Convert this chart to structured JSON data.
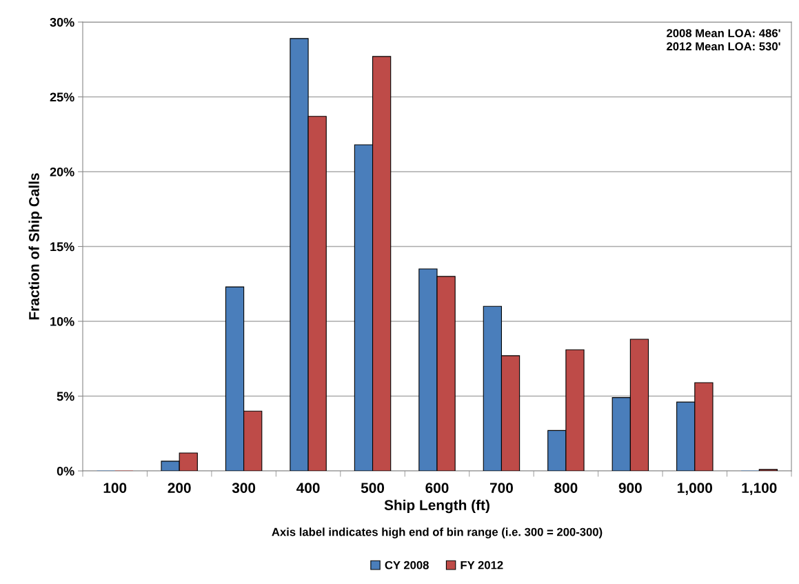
{
  "chart_data": {
    "type": "bar",
    "xlabel": "Ship Length (ft)",
    "ylabel": "Fraction of Ship Calls",
    "categories": [
      "100",
      "200",
      "300",
      "400",
      "500",
      "600",
      "700",
      "800",
      "900",
      "1,000",
      "1,100"
    ],
    "series": [
      {
        "name": "CY 2008",
        "color": "#4a7ebb",
        "values": [
          0,
          0.65,
          12.3,
          28.9,
          21.8,
          13.5,
          11.0,
          2.7,
          4.9,
          4.6,
          0
        ]
      },
      {
        "name": "FY 2012",
        "color": "#be4b48",
        "values": [
          0,
          1.2,
          4.0,
          23.7,
          27.7,
          13.0,
          7.7,
          8.1,
          8.8,
          5.9,
          0.1
        ]
      }
    ],
    "ylim": [
      0,
      30
    ],
    "yticks": [
      {
        "value": 0,
        "label": "0%"
      },
      {
        "value": 5,
        "label": "5%"
      },
      {
        "value": 10,
        "label": "10%"
      },
      {
        "value": 15,
        "label": "15%"
      },
      {
        "value": 20,
        "label": "20%"
      },
      {
        "value": 25,
        "label": "25%"
      },
      {
        "value": 30,
        "label": "30%"
      }
    ],
    "grid": "y",
    "legend": "bottom",
    "annotations": [
      "2008 Mean LOA: 486'\n2012 Mean LOA: 530'",
      "Axis label indicates high end of bin range (i.e. 300 = 200-300)"
    ]
  }
}
